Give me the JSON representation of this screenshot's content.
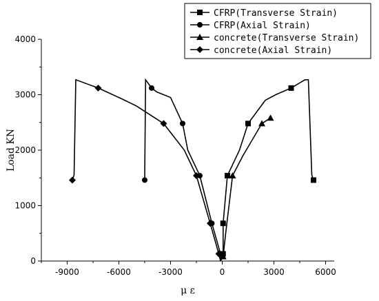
{
  "chart_data": {
    "type": "line",
    "title": "",
    "xlabel": "μ ε",
    "ylabel": "Load KN",
    "xlim": [
      -10500,
      6500
    ],
    "ylim": [
      0,
      4000
    ],
    "x_ticks": [
      -9000,
      -6000,
      -3000,
      0,
      3000,
      6000
    ],
    "y_ticks": [
      0,
      1000,
      2000,
      3000,
      4000
    ],
    "x_tick_labels": [
      "-9000",
      "-6000",
      "-3000",
      "0",
      "3000",
      "6000"
    ],
    "y_tick_labels": [
      "0",
      "1000",
      "2000",
      "3000",
      "4000"
    ],
    "grid": false,
    "legend_position": "top-right",
    "series": [
      {
        "name": "CFRP(Transverse Strain)",
        "marker": "square",
        "points": [
          [
            -100,
            0
          ],
          [
            50,
            130
          ],
          [
            50,
            680
          ],
          [
            300,
            1540
          ],
          [
            1000,
            2000
          ],
          [
            1500,
            2480
          ],
          [
            2500,
            2900
          ],
          [
            3100,
            3000
          ],
          [
            4000,
            3120
          ],
          [
            4800,
            3270
          ],
          [
            5000,
            3270
          ],
          [
            5200,
            1550
          ],
          [
            5300,
            1460
          ]
        ],
        "marker_points": [
          [
            50,
            130
          ],
          [
            50,
            680
          ],
          [
            300,
            1540
          ],
          [
            1500,
            2480
          ],
          [
            4000,
            3120
          ],
          [
            5300,
            1460
          ]
        ]
      },
      {
        "name": "CFRP(Axial Strain)",
        "marker": "circle",
        "points": [
          [
            -100,
            0
          ],
          [
            -100,
            130
          ],
          [
            -600,
            680
          ],
          [
            -1300,
            1540
          ],
          [
            -2000,
            2000
          ],
          [
            -2300,
            2480
          ],
          [
            -3000,
            2950
          ],
          [
            -3800,
            3050
          ],
          [
            -4100,
            3120
          ],
          [
            -4450,
            3270
          ],
          [
            -4500,
            1500
          ],
          [
            -4500,
            1460
          ]
        ],
        "marker_points": [
          [
            -100,
            130
          ],
          [
            -600,
            680
          ],
          [
            -1300,
            1540
          ],
          [
            -2300,
            2480
          ],
          [
            -4100,
            3120
          ],
          [
            -4500,
            1460
          ]
        ]
      },
      {
        "name": "concrete(Transverse Strain)",
        "marker": "triangle",
        "points": [
          [
            -100,
            0
          ],
          [
            50,
            80
          ],
          [
            200,
            500
          ],
          [
            600,
            1540
          ],
          [
            1200,
            1900
          ],
          [
            2300,
            2480
          ],
          [
            2800,
            2580
          ]
        ],
        "marker_points": [
          [
            50,
            80
          ],
          [
            600,
            1540
          ],
          [
            2300,
            2480
          ],
          [
            2800,
            2580
          ]
        ]
      },
      {
        "name": "concrete(Axial Strain)",
        "marker": "diamond",
        "points": [
          [
            -100,
            0
          ],
          [
            -200,
            130
          ],
          [
            -700,
            680
          ],
          [
            -1500,
            1540
          ],
          [
            -2200,
            2000
          ],
          [
            -3400,
            2480
          ],
          [
            -5000,
            2800
          ],
          [
            -5800,
            2920
          ],
          [
            -7200,
            3120
          ],
          [
            -8500,
            3270
          ],
          [
            -8600,
            1550
          ],
          [
            -8700,
            1460
          ]
        ],
        "marker_points": [
          [
            -200,
            130
          ],
          [
            -700,
            680
          ],
          [
            -1500,
            1540
          ],
          [
            -3400,
            2480
          ],
          [
            -7200,
            3120
          ],
          [
            -8700,
            1460
          ]
        ]
      }
    ]
  }
}
